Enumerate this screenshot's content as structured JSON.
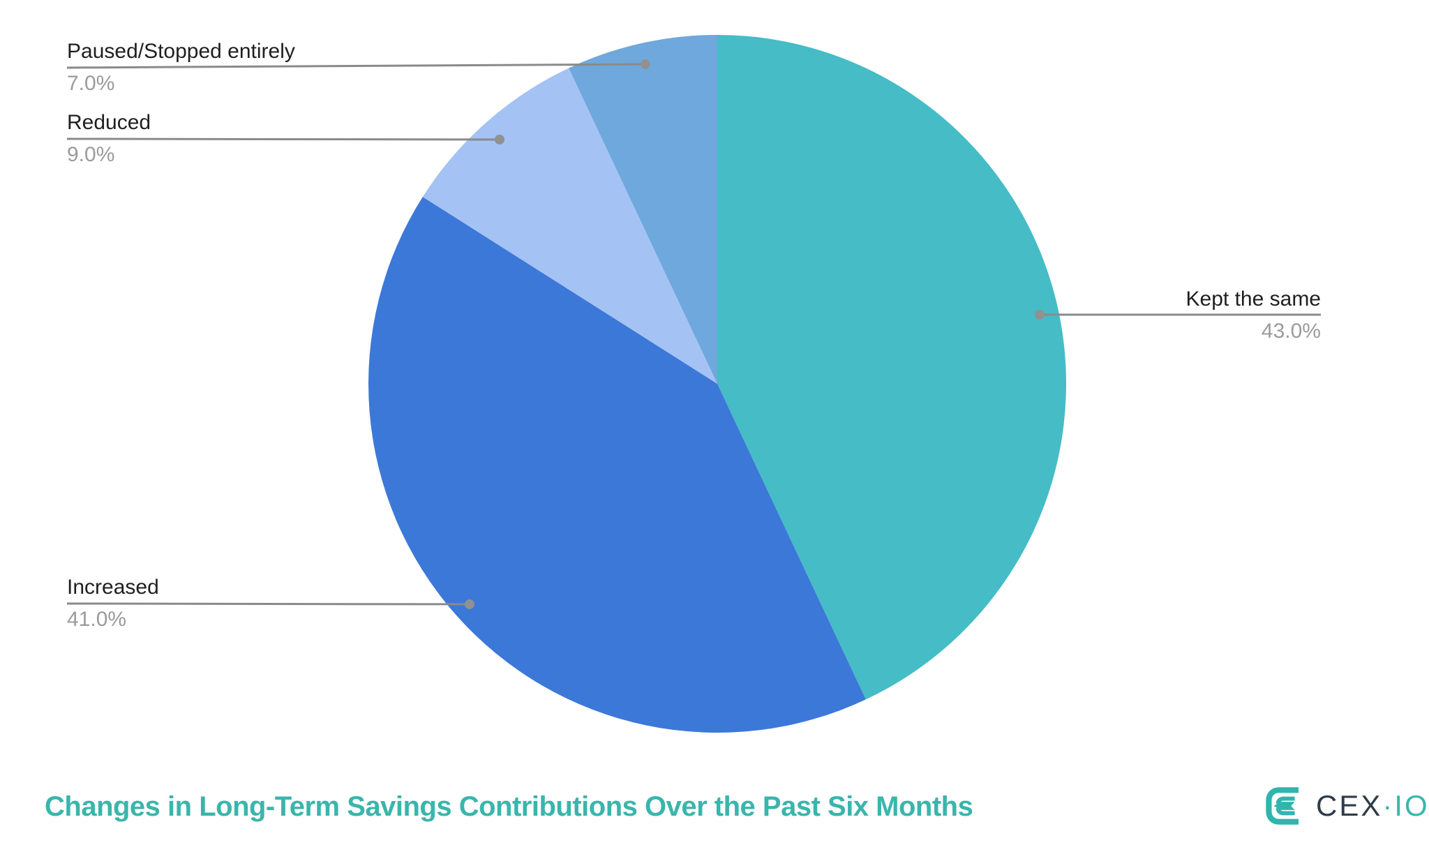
{
  "title": "Changes in Long-Term Savings Contributions Over the Past Six Months",
  "chart_data": {
    "type": "pie",
    "title": "Changes in Long-Term Savings Contributions Over the Past Six Months",
    "start_angle_deg": 0,
    "direction": "clockwise",
    "legend_position": "none",
    "label_style": "leader-lines",
    "slices": [
      {
        "label": "Kept the same",
        "value": 43.0,
        "display": "43.0%",
        "color": "#45BCC6"
      },
      {
        "label": "Increased",
        "value": 41.0,
        "display": "41.0%",
        "color": "#3C78D8"
      },
      {
        "label": "Reduced",
        "value": 9.0,
        "display": "9.0%",
        "color": "#A4C2F4"
      },
      {
        "label": "Paused/Stopped entirely",
        "value": 7.0,
        "display": "7.0%",
        "color": "#6FA8DC"
      }
    ]
  },
  "logo": {
    "text_primary": "CEX",
    "text_separator": "·",
    "text_secondary": "IO"
  },
  "colors": {
    "title_teal": "#3AB5AC",
    "leader_line": "#8a8a8a",
    "leader_dot": "#919191",
    "label_text": "#1f1f1f",
    "pct_text": "#9b9b9b",
    "logo_teal": "#2FB5AD",
    "logo_dark": "#2F3C49",
    "background": "#ffffff"
  }
}
